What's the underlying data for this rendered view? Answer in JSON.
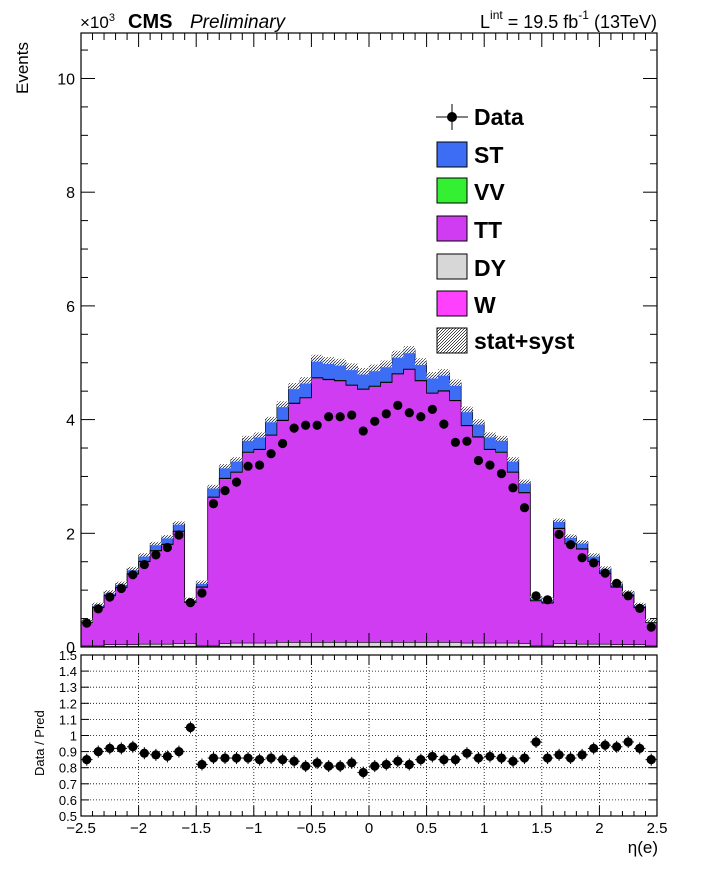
{
  "header": {
    "scale_base": "×10",
    "scale_exp": "3",
    "experiment": "CMS",
    "status": "Preliminary",
    "lumi_L": "L",
    "lumi_int": "int",
    "lumi_eq": " = 19.5 fb",
    "lumi_exp": "-1",
    "lumi_energy": " (13TeV)"
  },
  "colors": {
    "ST": "#3d6cf5",
    "VV": "#33f033",
    "TT": "#d03cf2",
    "DY": "#d7d7d7",
    "W": "#ff40ff",
    "data": "#000000"
  },
  "chart_data": [
    {
      "type": "bar",
      "stacked": true,
      "ylabel": "Events",
      "xlim": [
        -2.5,
        2.5
      ],
      "ylim": [
        0,
        10.8
      ],
      "y_multiplier": 1000,
      "yticks": [
        0,
        2,
        4,
        6,
        8,
        10
      ],
      "legend_position": "top-right",
      "bin_edges": [
        -2.5,
        -2.4,
        -2.3,
        -2.2,
        -2.1,
        -2.0,
        -1.9,
        -1.8,
        -1.7,
        -1.6,
        -1.5,
        -1.4,
        -1.3,
        -1.2,
        -1.1,
        -1.0,
        -0.9,
        -0.8,
        -0.7,
        -0.6,
        -0.5,
        -0.4,
        -0.3,
        -0.2,
        -0.1,
        0.0,
        0.1,
        0.2,
        0.3,
        0.4,
        0.5,
        0.6,
        0.7,
        0.8,
        0.9,
        1.0,
        1.1,
        1.2,
        1.3,
        1.4,
        1.5,
        1.6,
        1.7,
        1.8,
        1.9,
        2.0,
        2.1,
        2.2,
        2.3,
        2.4,
        2.5
      ],
      "series": [
        {
          "name": "W",
          "values": [
            0.01,
            0.01,
            0.01,
            0.01,
            0.01,
            0.01,
            0.01,
            0.01,
            0.01,
            0.01,
            0.01,
            0.01,
            0.01,
            0.01,
            0.01,
            0.01,
            0.01,
            0.01,
            0.01,
            0.01,
            0.01,
            0.01,
            0.01,
            0.01,
            0.01,
            0.01,
            0.01,
            0.01,
            0.01,
            0.01,
            0.01,
            0.01,
            0.01,
            0.01,
            0.01,
            0.01,
            0.01,
            0.01,
            0.01,
            0.01,
            0.01,
            0.01,
            0.01,
            0.01,
            0.01,
            0.01,
            0.01,
            0.01,
            0.01,
            0.01
          ]
        },
        {
          "name": "DY",
          "values": [
            0.02,
            0.02,
            0.03,
            0.03,
            0.03,
            0.04,
            0.04,
            0.04,
            0.05,
            0.05,
            0.02,
            0.02,
            0.05,
            0.06,
            0.06,
            0.06,
            0.06,
            0.07,
            0.07,
            0.07,
            0.07,
            0.07,
            0.07,
            0.07,
            0.07,
            0.07,
            0.07,
            0.07,
            0.07,
            0.07,
            0.07,
            0.07,
            0.07,
            0.06,
            0.06,
            0.06,
            0.06,
            0.06,
            0.05,
            0.02,
            0.02,
            0.05,
            0.05,
            0.04,
            0.04,
            0.04,
            0.03,
            0.03,
            0.03,
            0.02
          ]
        },
        {
          "name": "TT",
          "values": [
            0.4,
            0.66,
            0.86,
            1.0,
            1.24,
            1.45,
            1.64,
            1.75,
            1.97,
            0.72,
            1.02,
            2.6,
            2.9,
            3.0,
            3.35,
            3.4,
            3.65,
            3.9,
            4.2,
            4.3,
            4.65,
            4.62,
            4.6,
            4.52,
            4.45,
            4.5,
            4.57,
            4.72,
            4.8,
            4.6,
            4.38,
            4.42,
            4.25,
            3.82,
            3.62,
            3.4,
            3.35,
            3.0,
            2.65,
            0.78,
            0.74,
            2.02,
            1.75,
            1.67,
            1.45,
            1.24,
            1.01,
            0.86,
            0.65,
            0.4
          ]
        },
        {
          "name": "VV",
          "values": [
            0.01,
            0.01,
            0.01,
            0.01,
            0.01,
            0.01,
            0.01,
            0.01,
            0.01,
            0.01,
            0.01,
            0.01,
            0.01,
            0.01,
            0.01,
            0.01,
            0.01,
            0.01,
            0.01,
            0.01,
            0.01,
            0.01,
            0.01,
            0.01,
            0.01,
            0.01,
            0.01,
            0.01,
            0.01,
            0.01,
            0.01,
            0.01,
            0.01,
            0.01,
            0.01,
            0.01,
            0.01,
            0.01,
            0.01,
            0.01,
            0.01,
            0.01,
            0.01,
            0.01,
            0.01,
            0.01,
            0.01,
            0.01,
            0.01,
            0.01
          ]
        },
        {
          "name": "ST",
          "values": [
            0.03,
            0.05,
            0.06,
            0.07,
            0.09,
            0.11,
            0.12,
            0.13,
            0.14,
            0.05,
            0.08,
            0.18,
            0.21,
            0.22,
            0.24,
            0.25,
            0.27,
            0.28,
            0.3,
            0.3,
            0.34,
            0.33,
            0.32,
            0.32,
            0.31,
            0.32,
            0.32,
            0.34,
            0.34,
            0.33,
            0.31,
            0.32,
            0.31,
            0.28,
            0.26,
            0.25,
            0.24,
            0.22,
            0.19,
            0.06,
            0.06,
            0.14,
            0.13,
            0.12,
            0.11,
            0.09,
            0.07,
            0.06,
            0.05,
            0.03
          ]
        }
      ],
      "uncertainty_name": "stat+syst",
      "data": {
        "name": "Data",
        "x": [
          -2.45,
          -2.35,
          -2.25,
          -2.15,
          -2.05,
          -1.95,
          -1.85,
          -1.75,
          -1.65,
          -1.55,
          -1.45,
          -1.35,
          -1.25,
          -1.15,
          -1.05,
          -0.95,
          -0.85,
          -0.75,
          -0.65,
          -0.55,
          -0.45,
          -0.35,
          -0.25,
          -0.15,
          -0.05,
          0.05,
          0.15,
          0.25,
          0.35,
          0.45,
          0.55,
          0.65,
          0.75,
          0.85,
          0.95,
          1.05,
          1.15,
          1.25,
          1.35,
          1.45,
          1.55,
          1.65,
          1.75,
          1.85,
          1.95,
          2.05,
          2.15,
          2.25,
          2.35,
          2.45
        ],
        "y": [
          0.42,
          0.67,
          0.88,
          1.03,
          1.27,
          1.45,
          1.62,
          1.75,
          1.97,
          0.78,
          0.95,
          2.52,
          2.75,
          2.9,
          3.18,
          3.2,
          3.4,
          3.58,
          3.85,
          3.9,
          3.9,
          4.05,
          4.05,
          4.08,
          3.8,
          3.97,
          4.1,
          4.25,
          4.12,
          4.05,
          4.18,
          3.92,
          3.6,
          3.62,
          3.28,
          3.2,
          3.05,
          2.8,
          2.45,
          0.9,
          0.83,
          1.98,
          1.8,
          1.57,
          1.48,
          1.3,
          1.12,
          0.9,
          0.68,
          0.35
        ]
      }
    },
    {
      "type": "scatter",
      "ylabel": "Data / Pred",
      "xlabel": "η(e)",
      "xlim": [
        -2.5,
        2.5
      ],
      "ylim": [
        0.5,
        1.5
      ],
      "grid": true,
      "xticks": [
        -2.5,
        -2,
        -1.5,
        -1,
        -0.5,
        0,
        0.5,
        1,
        1.5,
        2,
        2.5
      ],
      "xtick_labels": [
        "−2.5",
        "−2",
        "−1.5",
        "−1",
        "−0.5",
        "0",
        "0.5",
        "1",
        "1.5",
        "2",
        "2.5"
      ],
      "yticks": [
        0.5,
        0.6,
        0.7,
        0.8,
        0.9,
        1,
        1.1,
        1.2,
        1.3,
        1.4,
        1.5
      ],
      "ytick_labels": [
        "0.5",
        "0.6",
        "0.7",
        "0.8",
        "0.9",
        "1",
        "1.1",
        "1.2",
        "1.3",
        "1.4",
        "1.5"
      ],
      "x": [
        -2.45,
        -2.35,
        -2.25,
        -2.15,
        -2.05,
        -1.95,
        -1.85,
        -1.75,
        -1.65,
        -1.55,
        -1.45,
        -1.35,
        -1.25,
        -1.15,
        -1.05,
        -0.95,
        -0.85,
        -0.75,
        -0.65,
        -0.55,
        -0.45,
        -0.35,
        -0.25,
        -0.15,
        -0.05,
        0.05,
        0.15,
        0.25,
        0.35,
        0.45,
        0.55,
        0.65,
        0.75,
        0.85,
        0.95,
        1.05,
        1.15,
        1.25,
        1.35,
        1.45,
        1.55,
        1.65,
        1.75,
        1.85,
        1.95,
        2.05,
        2.15,
        2.25,
        2.35,
        2.45
      ],
      "y": [
        0.85,
        0.9,
        0.92,
        0.92,
        0.93,
        0.89,
        0.88,
        0.87,
        0.9,
        1.05,
        0.82,
        0.86,
        0.86,
        0.86,
        0.86,
        0.85,
        0.86,
        0.85,
        0.84,
        0.81,
        0.83,
        0.81,
        0.81,
        0.83,
        0.77,
        0.81,
        0.82,
        0.84,
        0.82,
        0.85,
        0.87,
        0.85,
        0.85,
        0.89,
        0.86,
        0.87,
        0.86,
        0.84,
        0.86,
        0.96,
        0.86,
        0.88,
        0.86,
        0.88,
        0.92,
        0.94,
        0.93,
        0.96,
        0.92,
        0.85
      ]
    }
  ]
}
